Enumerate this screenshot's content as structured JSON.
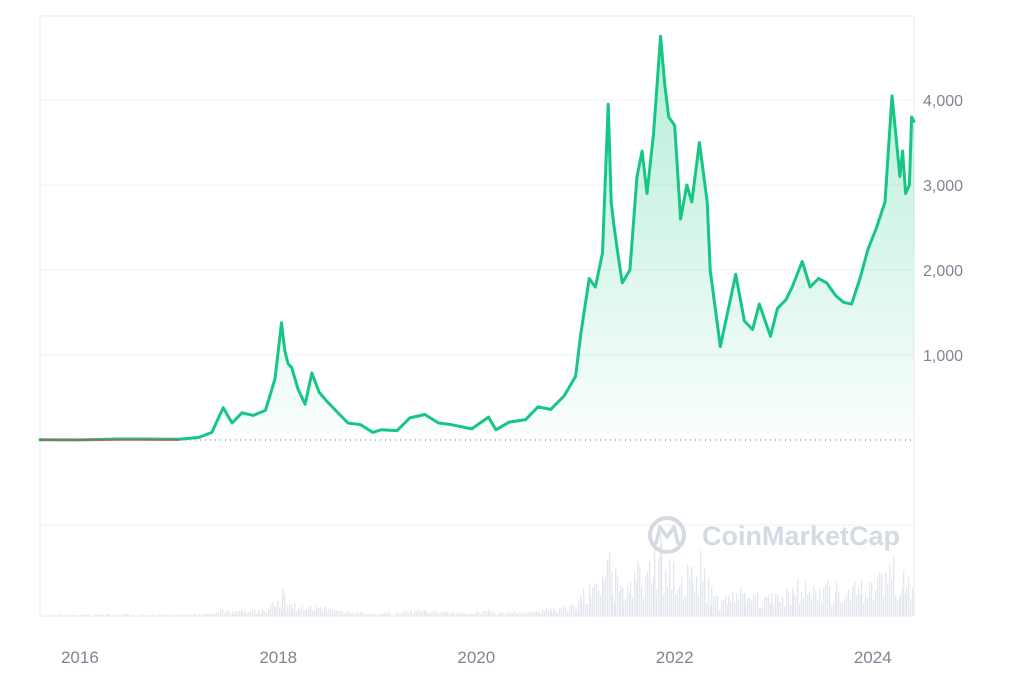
{
  "chart_data": {
    "type": "area",
    "title": "",
    "xlabel": "",
    "ylabel": "",
    "x_range": [
      "2015-08-07",
      "2024-06-01"
    ],
    "ylim": [
      0,
      4900
    ],
    "y_ticks": [
      {
        "value": 1000,
        "label": "1,000"
      },
      {
        "value": 2000,
        "label": "2,000"
      },
      {
        "value": 3000,
        "label": "3,000"
      },
      {
        "value": 4000,
        "label": "4,000"
      }
    ],
    "x_ticks": [
      {
        "value": "2016-01-01",
        "label": "2016"
      },
      {
        "value": "2018-01-01",
        "label": "2018"
      },
      {
        "value": "2020-01-01",
        "label": "2020"
      },
      {
        "value": "2022-01-01",
        "label": "2022"
      },
      {
        "value": "2024-01-01",
        "label": "2024"
      }
    ],
    "baseline_value": 0,
    "grid": true,
    "line_color": "#16c784",
    "below_baseline_color": "#ea3943",
    "volume_color": "#e5e8ee",
    "series": [
      {
        "x": [
          "2015-08-07",
          "2016-01-01",
          "2016-06-01",
          "2017-01-01",
          "2017-03-15",
          "2017-05-01",
          "2017-06-12",
          "2017-07-15",
          "2017-08-20",
          "2017-10-01",
          "2017-11-15",
          "2017-12-20",
          "2018-01-13",
          "2018-01-25",
          "2018-02-06",
          "2018-02-20",
          "2018-03-15",
          "2018-04-10",
          "2018-05-05",
          "2018-06-01",
          "2018-07-01",
          "2018-08-15",
          "2018-09-15",
          "2018-11-01",
          "2018-12-15",
          "2019-01-15",
          "2019-03-15",
          "2019-05-01",
          "2019-06-25",
          "2019-08-15",
          "2019-10-01",
          "2019-12-15",
          "2020-02-15",
          "2020-03-13",
          "2020-05-01",
          "2020-07-01",
          "2020-08-15",
          "2020-10-01",
          "2020-11-20",
          "2021-01-01",
          "2021-01-20",
          "2021-02-20",
          "2021-03-15",
          "2021-04-10",
          "2021-05-01",
          "2021-05-12",
          "2021-05-23",
          "2021-06-10",
          "2021-06-22",
          "2021-07-20",
          "2021-08-15",
          "2021-09-03",
          "2021-09-21",
          "2021-10-15",
          "2021-11-10",
          "2021-11-25",
          "2021-12-10",
          "2022-01-01",
          "2022-01-23",
          "2022-02-15",
          "2022-03-05",
          "2022-04-02",
          "2022-05-01",
          "2022-05-12",
          "2022-06-18",
          "2022-07-15",
          "2022-08-14",
          "2022-09-15",
          "2022-10-15",
          "2022-11-09",
          "2022-12-20",
          "2023-01-15",
          "2023-02-15",
          "2023-03-10",
          "2023-04-16",
          "2023-05-15",
          "2023-06-15",
          "2023-07-15",
          "2023-08-17",
          "2023-09-15",
          "2023-10-15",
          "2023-11-15",
          "2023-12-15",
          "2024-01-15",
          "2024-02-15",
          "2024-03-12",
          "2024-04-10",
          "2024-04-20",
          "2024-05-01",
          "2024-05-15",
          "2024-05-23",
          "2024-06-01"
        ],
        "y": [
          3,
          1,
          12,
          8,
          30,
          90,
          380,
          200,
          320,
          290,
          350,
          720,
          1380,
          1050,
          900,
          850,
          600,
          420,
          790,
          560,
          450,
          300,
          200,
          180,
          90,
          120,
          110,
          260,
          300,
          200,
          180,
          130,
          270,
          120,
          210,
          240,
          390,
          360,
          520,
          750,
          1250,
          1900,
          1800,
          2200,
          3950,
          2800,
          2500,
          2100,
          1850,
          2000,
          3100,
          3400,
          2900,
          3600,
          4750,
          4200,
          3800,
          3700,
          2600,
          3000,
          2800,
          3500,
          2800,
          2000,
          1100,
          1500,
          1950,
          1400,
          1300,
          1600,
          1220,
          1550,
          1650,
          1800,
          2100,
          1800,
          1900,
          1850,
          1700,
          1620,
          1600,
          1900,
          2250,
          2500,
          2800,
          4050,
          3100,
          3400,
          2900,
          3000,
          3800,
          3750
        ]
      }
    ]
  },
  "watermark": {
    "text": "CoinMarketCap",
    "icon": "coinmarketcap-logo-icon"
  }
}
